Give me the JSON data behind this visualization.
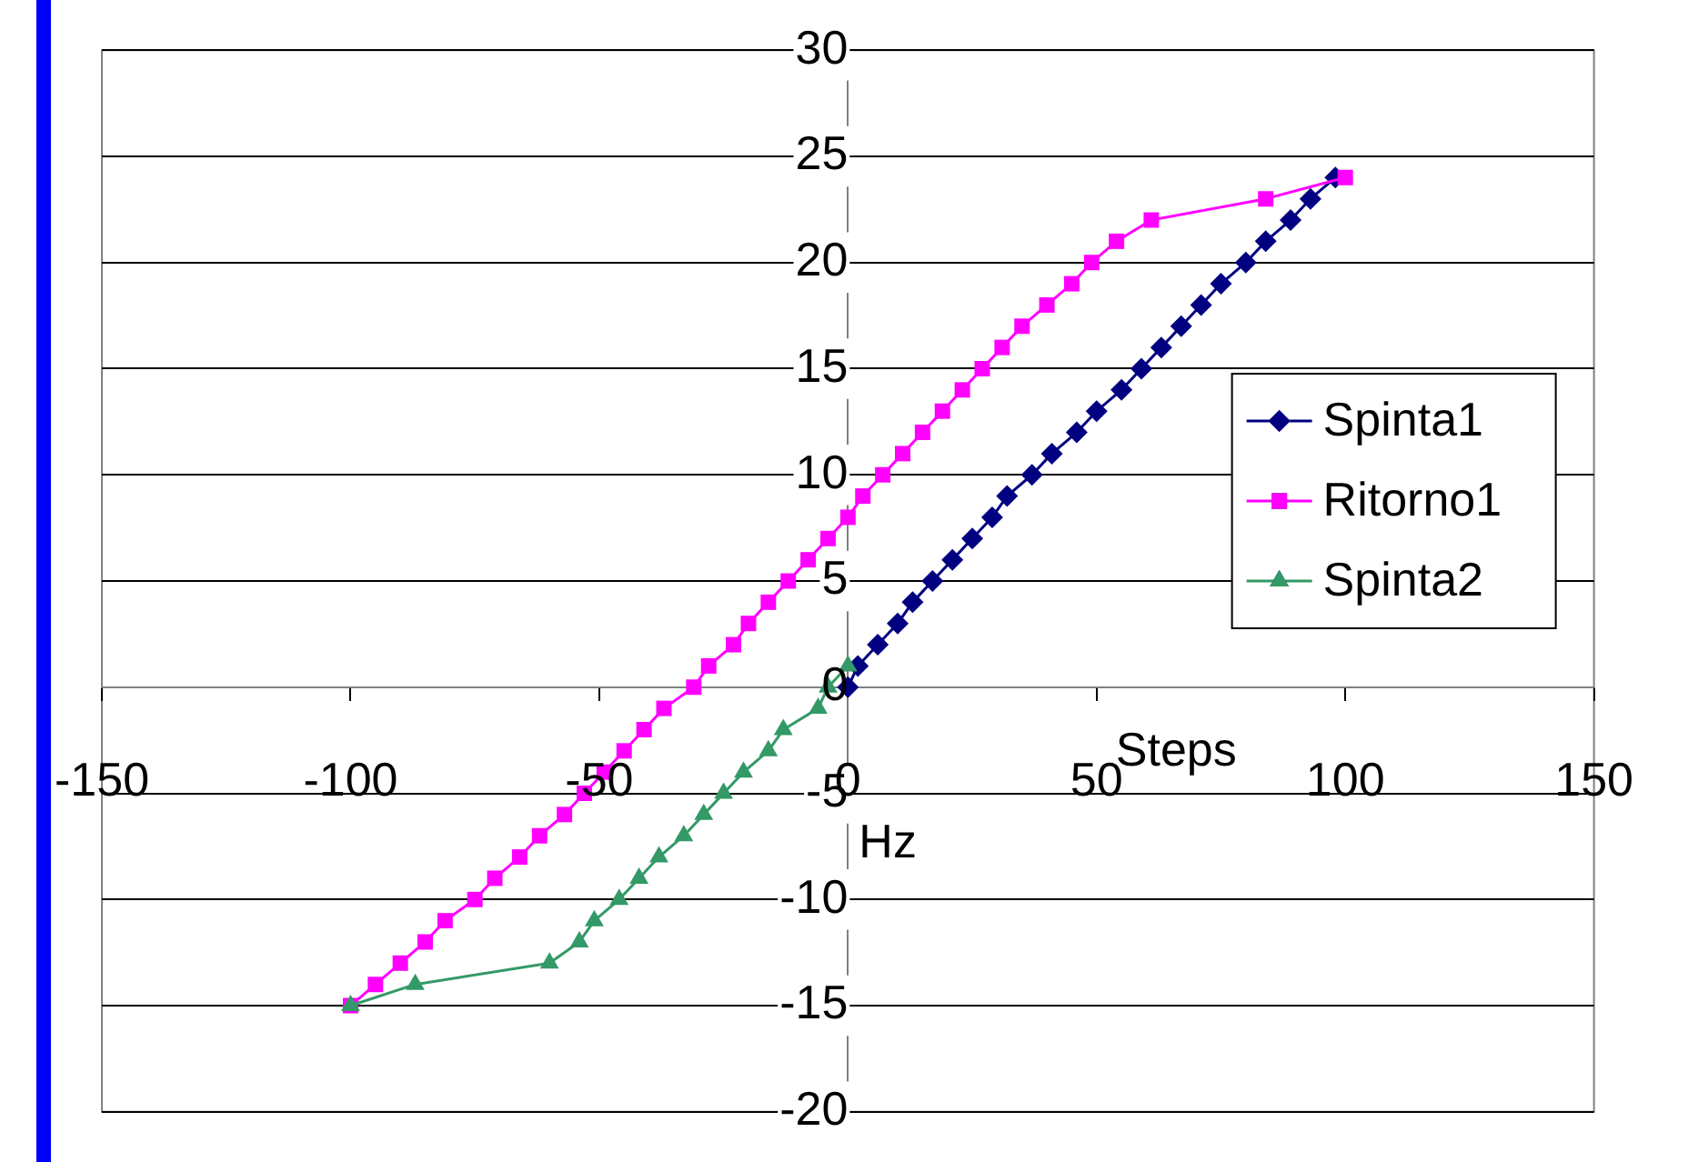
{
  "chart_data": {
    "type": "line",
    "xlabel": "Steps",
    "ylabel": "Hz",
    "xlim": [
      -150,
      150
    ],
    "xticks": [
      -150,
      -100,
      -50,
      0,
      50,
      100,
      150
    ],
    "ylim": [
      -20,
      30
    ],
    "yticks": [
      -20,
      -15,
      -10,
      -5,
      0,
      5,
      10,
      15,
      20,
      25,
      30
    ],
    "grid": "y",
    "legend": "right",
    "series": [
      {
        "name": "Spinta1",
        "color": "#000080",
        "marker": "diamond",
        "x": [
          0,
          2,
          6,
          10,
          13,
          17,
          21,
          25,
          29,
          32,
          37,
          41,
          46,
          50,
          55,
          59,
          63,
          67,
          71,
          75,
          80,
          84,
          89,
          93,
          98
        ],
        "values": [
          0,
          1,
          2,
          3,
          4,
          5,
          6,
          7,
          8,
          9,
          10,
          11,
          12,
          13,
          14,
          15,
          16,
          17,
          18,
          19,
          20,
          21,
          22,
          23,
          24
        ]
      },
      {
        "name": "Ritorno1",
        "color": "#ff00ff",
        "marker": "square",
        "x": [
          100,
          84,
          61,
          54,
          49,
          45,
          40,
          35,
          31,
          27,
          23,
          19,
          15,
          11,
          7,
          3,
          0,
          -4,
          -8,
          -12,
          -16,
          -20,
          -23,
          -28,
          -31,
          -37,
          -41,
          -45,
          -49,
          -53,
          -57,
          -62,
          -66,
          -71,
          -75,
          -81,
          -85,
          -90,
          -95,
          -100
        ],
        "values": [
          24,
          23,
          22,
          21,
          20,
          19,
          18,
          17,
          16,
          15,
          14,
          13,
          12,
          11,
          10,
          9,
          8,
          7,
          6,
          5,
          4,
          3,
          2,
          1,
          0,
          -1,
          -2,
          -3,
          -4,
          -5,
          -6,
          -7,
          -8,
          -9,
          -10,
          -11,
          -12,
          -13,
          -14,
          -15
        ]
      },
      {
        "name": "Spinta2",
        "color": "#339966",
        "marker": "triangle",
        "x": [
          -100,
          -87,
          -60,
          -54,
          -51,
          -46,
          -42,
          -38,
          -33,
          -29,
          -25,
          -21,
          -16,
          -13,
          -6,
          -4,
          0
        ],
        "values": [
          -15,
          -14,
          -13,
          -12,
          -11,
          -10,
          -9,
          -8,
          -7,
          -6,
          -5,
          -4,
          -3,
          -2,
          -1,
          0,
          1
        ]
      }
    ]
  }
}
